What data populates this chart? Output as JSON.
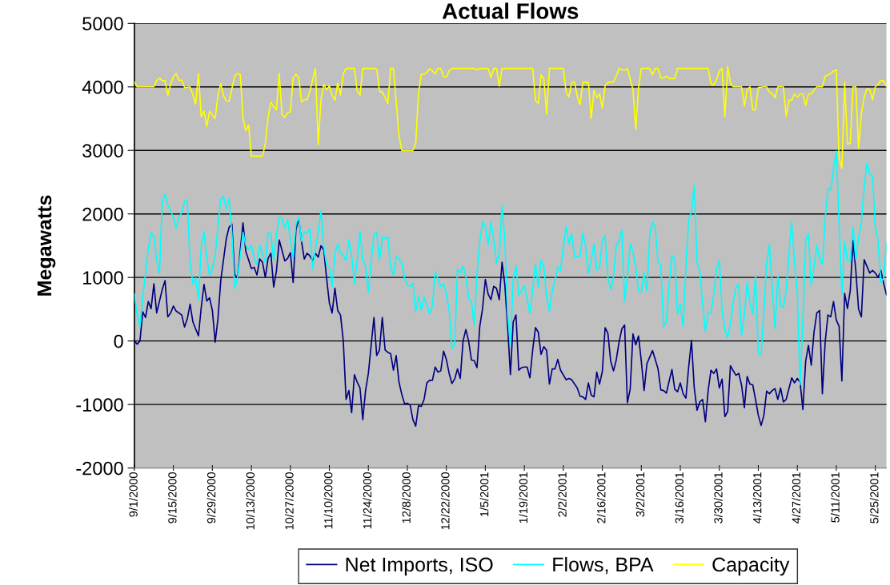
{
  "chart_data": {
    "type": "line",
    "title": "Actual Flows",
    "ylabel": "Megawatts",
    "xlim": [
      "2000-09-01",
      "2001-05-29"
    ],
    "ylim": [
      -2000,
      5000
    ],
    "yticks": [
      -2000,
      -1000,
      0,
      1000,
      2000,
      3000,
      4000,
      5000
    ],
    "xticks": [
      {
        "value": "2000-09-01",
        "label": "9/1/2000"
      },
      {
        "value": "2000-09-15",
        "label": "9/15/2000"
      },
      {
        "value": "2000-09-29",
        "label": "9/29/2000"
      },
      {
        "value": "2000-10-13",
        "label": "10/13/2000"
      },
      {
        "value": "2000-10-27",
        "label": "10/27/2000"
      },
      {
        "value": "2000-11-10",
        "label": "11/10/2000"
      },
      {
        "value": "2000-11-24",
        "label": "11/24/2000"
      },
      {
        "value": "2000-12-08",
        "label": "12/8/2000"
      },
      {
        "value": "2000-12-22",
        "label": "12/22/2000"
      },
      {
        "value": "2001-01-05",
        "label": "1/5/2001"
      },
      {
        "value": "2001-01-19",
        "label": "1/19/2001"
      },
      {
        "value": "2001-02-02",
        "label": "2/2/2001"
      },
      {
        "value": "2001-02-16",
        "label": "2/16/2001"
      },
      {
        "value": "2001-03-02",
        "label": "3/2/2001"
      },
      {
        "value": "2001-03-16",
        "label": "3/16/2001"
      },
      {
        "value": "2001-03-30",
        "label": "3/30/2001"
      },
      {
        "value": "2001-04-13",
        "label": "4/13/2001"
      },
      {
        "value": "2001-04-27",
        "label": "4/27/2001"
      },
      {
        "value": "2001-05-11",
        "label": "5/11/2001"
      },
      {
        "value": "2001-05-25",
        "label": "5/25/2001"
      }
    ],
    "grid": "y",
    "legend": "bottom",
    "marker": "none",
    "line_style": "solid",
    "series": [
      {
        "name": "Net Imports, ISO",
        "color": "#000080",
        "x": [
          "2000-09-01",
          "2000-09-02",
          "2000-09-03",
          "2000-09-04",
          "2000-09-05",
          "2000-09-06",
          "2000-09-07",
          "2000-09-08",
          "2000-09-09",
          "2000-09-11",
          "2000-09-12",
          "2000-09-13",
          "2000-09-14",
          "2000-09-15",
          "2000-09-16",
          "2000-09-18",
          "2000-09-19",
          "2000-09-20",
          "2000-09-21",
          "2000-09-22",
          "2000-09-24",
          "2000-09-25",
          "2000-09-26",
          "2000-09-27",
          "2000-09-28",
          "2000-09-29",
          "2000-09-30",
          "2000-10-01",
          "2000-10-02",
          "2000-10-04",
          "2000-10-05",
          "2000-10-06",
          "2000-10-07",
          "2000-10-08",
          "2000-10-10",
          "2000-10-11",
          "2000-10-13",
          "2000-10-14",
          "2000-10-15",
          "2000-10-16",
          "2000-10-17",
          "2000-10-18",
          "2000-10-19",
          "2000-10-20",
          "2000-10-21",
          "2000-10-22",
          "2000-10-23",
          "2000-10-25",
          "2000-10-26",
          "2000-10-27",
          "2000-10-28",
          "2000-10-29",
          "2000-10-30",
          "2000-10-31",
          "2000-11-01",
          "2000-11-02",
          "2000-11-03",
          "2000-11-04",
          "2000-11-05",
          "2000-11-06",
          "2000-11-07",
          "2000-11-08",
          "2000-11-09",
          "2000-11-10",
          "2000-11-11",
          "2000-11-12",
          "2000-11-13",
          "2000-11-14",
          "2000-11-15",
          "2000-11-16",
          "2000-11-17",
          "2000-11-18",
          "2000-11-19",
          "2000-11-20",
          "2000-11-21",
          "2000-11-22",
          "2000-11-23",
          "2000-11-24",
          "2000-11-26",
          "2000-11-27",
          "2000-11-28",
          "2000-11-29",
          "2000-11-30",
          "2000-12-01",
          "2000-12-02",
          "2000-12-03",
          "2000-12-04",
          "2000-12-05",
          "2000-12-06",
          "2000-12-07",
          "2000-12-08",
          "2000-12-09",
          "2000-12-10",
          "2000-12-11",
          "2000-12-12",
          "2000-12-13",
          "2000-12-14",
          "2000-12-15",
          "2000-12-16",
          "2000-12-17",
          "2000-12-18",
          "2000-12-19",
          "2000-12-20",
          "2000-12-21",
          "2000-12-22",
          "2000-12-23",
          "2000-12-24",
          "2000-12-25",
          "2000-12-26",
          "2000-12-27",
          "2000-12-28",
          "2000-12-29",
          "2000-12-30",
          "2000-12-31",
          "2001-01-01",
          "2001-01-02",
          "2001-01-03",
          "2001-01-04",
          "2001-01-05",
          "2001-01-06",
          "2001-01-07",
          "2001-01-08",
          "2001-01-09",
          "2001-01-10",
          "2001-01-11",
          "2001-01-12",
          "2001-01-13",
          "2001-01-14",
          "2001-01-15",
          "2001-01-16",
          "2001-01-17",
          "2001-01-18",
          "2001-01-19",
          "2001-01-20",
          "2001-01-21",
          "2001-01-22",
          "2001-01-23",
          "2001-01-24",
          "2001-01-25",
          "2001-01-26",
          "2001-01-27",
          "2001-01-28",
          "2001-01-29",
          "2001-01-30",
          "2001-01-31",
          "2001-02-01",
          "2001-02-03",
          "2001-02-04",
          "2001-02-05",
          "2001-02-07",
          "2001-02-08",
          "2001-02-09",
          "2001-02-10",
          "2001-02-11",
          "2001-02-12",
          "2001-02-13",
          "2001-02-14",
          "2001-02-15",
          "2001-02-16",
          "2001-02-17",
          "2001-02-18",
          "2001-02-19",
          "2001-02-20",
          "2001-02-21",
          "2001-02-22",
          "2001-02-23",
          "2001-02-24",
          "2001-02-25",
          "2001-02-26",
          "2001-02-27",
          "2001-02-28",
          "2001-03-01",
          "2001-03-02",
          "2001-03-03",
          "2001-03-04",
          "2001-03-06",
          "2001-03-07",
          "2001-03-08",
          "2001-03-09",
          "2001-03-10",
          "2001-03-11",
          "2001-03-12",
          "2001-03-13",
          "2001-03-14",
          "2001-03-15",
          "2001-03-16",
          "2001-03-17",
          "2001-03-18",
          "2001-03-19",
          "2001-03-20",
          "2001-03-21",
          "2001-03-22",
          "2001-03-23",
          "2001-03-24",
          "2001-03-25",
          "2001-03-26",
          "2001-03-27",
          "2001-03-28",
          "2001-03-29",
          "2001-03-30",
          "2001-03-31",
          "2001-04-01",
          "2001-04-02",
          "2001-04-03",
          "2001-04-04",
          "2001-04-05",
          "2001-04-06",
          "2001-04-07",
          "2001-04-08",
          "2001-04-09",
          "2001-04-10",
          "2001-04-11",
          "2001-04-12",
          "2001-04-13",
          "2001-04-14",
          "2001-04-15",
          "2001-04-16",
          "2001-04-17",
          "2001-04-18",
          "2001-04-19",
          "2001-04-20",
          "2001-04-21",
          "2001-04-22",
          "2001-04-23",
          "2001-04-24",
          "2001-04-25",
          "2001-04-26",
          "2001-04-27",
          "2001-04-28",
          "2001-04-29",
          "2001-04-30",
          "2001-05-01",
          "2001-05-02",
          "2001-05-03",
          "2001-05-04",
          "2001-05-05",
          "2001-05-06",
          "2001-05-07",
          "2001-05-08",
          "2001-05-09",
          "2001-05-10",
          "2001-05-11",
          "2001-05-12",
          "2001-05-13",
          "2001-05-14",
          "2001-05-15",
          "2001-05-16",
          "2001-05-17",
          "2001-05-18",
          "2001-05-19",
          "2001-05-20",
          "2001-05-21",
          "2001-05-23",
          "2001-05-24",
          "2001-05-25",
          "2001-05-26",
          "2001-05-27",
          "2001-05-28",
          "2001-05-29"
        ],
        "values": [
          0,
          -50,
          0,
          460,
          370,
          620,
          510,
          900,
          440,
          810,
          950,
          380,
          440,
          550,
          470,
          410,
          220,
          350,
          580,
          300,
          80,
          530,
          890,
          630,
          680,
          480,
          -20,
          350,
          950,
          1610,
          1790,
          1840,
          1050,
          990,
          1860,
          1410,
          1140,
          1160,
          1040,
          1290,
          1240,
          1000,
          1300,
          1380,
          850,
          1100,
          1590,
          1260,
          1300,
          1390,
          920,
          1750,
          1930,
          1570,
          1290,
          1380,
          1340,
          1260,
          1380,
          1320,
          1500,
          1430,
          990,
          600,
          440,
          830,
          480,
          410,
          0,
          -920,
          -780,
          -1130,
          -530,
          -650,
          -740,
          -1240,
          -780,
          -510,
          370,
          -230,
          -140,
          370,
          -140,
          -180,
          -200,
          -460,
          -230,
          -650,
          -840,
          -990,
          -980,
          -1010,
          -1240,
          -1340,
          -1020,
          -1030,
          -920,
          -660,
          -620,
          -620,
          -410,
          -490,
          -470,
          -160,
          -290,
          -510,
          -670,
          -600,
          -440,
          -590,
          0,
          180,
          0,
          -300,
          -310,
          -420,
          230,
          510,
          970,
          740,
          650,
          860,
          830,
          650,
          1240,
          880,
          230,
          -530,
          300,
          410,
          -460,
          -420,
          -410,
          -410,
          -580,
          -140,
          210,
          140,
          -210,
          -90,
          -150,
          -680,
          -440,
          -440,
          -290,
          -460,
          -610,
          -590,
          -610,
          -740,
          -870,
          -880,
          -920,
          -660,
          -850,
          -880,
          -490,
          -680,
          -480,
          210,
          120,
          -320,
          -470,
          -300,
          -20,
          190,
          250,
          -970,
          -760,
          110,
          -60,
          80,
          -320,
          -780,
          -360,
          -150,
          -290,
          -440,
          -770,
          -780,
          -820,
          -630,
          -450,
          -760,
          -800,
          -660,
          -830,
          -900,
          -410,
          10,
          -740,
          -1090,
          -960,
          -920,
          -1270,
          -780,
          -460,
          -510,
          -440,
          -740,
          -600,
          -1190,
          -1110,
          -390,
          -470,
          -540,
          -510,
          -700,
          -1050,
          -560,
          -680,
          -690,
          -920,
          -1170,
          -1330,
          -1170,
          -790,
          -830,
          -780,
          -750,
          -920,
          -740,
          -960,
          -920,
          -750,
          -580,
          -660,
          -590,
          -650,
          -1080,
          -320,
          -70,
          -380,
          140,
          440,
          480,
          -830,
          -20,
          410,
          380,
          620,
          330,
          230,
          -630,
          750,
          510,
          790,
          1580,
          1110,
          500,
          380,
          1280,
          1070,
          1110,
          1070,
          1000,
          1110,
          910,
          730
        ]
      },
      {
        "name": "Flows, BPA",
        "color": "#00ffff",
        "x": [
          "2000-09-01",
          "2000-09-02",
          "2000-09-03",
          "2000-09-04",
          "2000-09-05",
          "2000-09-06",
          "2000-09-07",
          "2000-09-08",
          "2000-09-09",
          "2000-09-10",
          "2000-09-11",
          "2000-09-12",
          "2000-09-13",
          "2000-09-14",
          "2000-09-15",
          "2000-09-16",
          "2000-09-17",
          "2000-09-18",
          "2000-09-19",
          "2000-09-20",
          "2000-09-21",
          "2000-09-22",
          "2000-09-23",
          "2000-09-24",
          "2000-09-25",
          "2000-09-26",
          "2000-09-27",
          "2000-09-28",
          "2000-09-29",
          "2000-09-30",
          "2000-10-01",
          "2000-10-02",
          "2000-10-03",
          "2000-10-04",
          "2000-10-05",
          "2000-10-06",
          "2000-10-07",
          "2000-10-08",
          "2000-10-09",
          "2000-10-10",
          "2000-10-11",
          "2000-10-12",
          "2000-10-13",
          "2000-10-14",
          "2000-10-15",
          "2000-10-16",
          "2000-10-17",
          "2000-10-18",
          "2000-10-19",
          "2000-10-20",
          "2000-10-21",
          "2000-10-22",
          "2000-10-23",
          "2000-10-24",
          "2000-10-25",
          "2000-10-26",
          "2000-10-27",
          "2000-10-28",
          "2000-10-29",
          "2000-10-30",
          "2000-10-31",
          "2000-11-01",
          "2000-11-02",
          "2000-11-03",
          "2000-11-04",
          "2000-11-05",
          "2000-11-06",
          "2000-11-07",
          "2000-11-08",
          "2000-11-09",
          "2000-11-10",
          "2000-11-11",
          "2000-11-12",
          "2000-11-13",
          "2000-11-14",
          "2000-11-15",
          "2000-11-16",
          "2000-11-17",
          "2000-11-18",
          "2000-11-19",
          "2000-11-20",
          "2000-11-21",
          "2000-11-22",
          "2000-11-23",
          "2000-11-24",
          "2000-11-25",
          "2000-11-26",
          "2000-11-27",
          "2000-11-28",
          "2000-11-29",
          "2000-11-30",
          "2000-12-01",
          "2000-12-02",
          "2000-12-03",
          "2000-12-04",
          "2000-12-05",
          "2000-12-06",
          "2000-12-07",
          "2000-12-08",
          "2000-12-09",
          "2000-12-10",
          "2000-12-11",
          "2000-12-12",
          "2000-12-13",
          "2000-12-14",
          "2000-12-15",
          "2000-12-16",
          "2000-12-17",
          "2000-12-18",
          "2000-12-19",
          "2000-12-20",
          "2000-12-21",
          "2000-12-22",
          "2000-12-23",
          "2000-12-24",
          "2000-12-25",
          "2000-12-26",
          "2000-12-27",
          "2000-12-28",
          "2000-12-29",
          "2000-12-30",
          "2000-12-31",
          "2001-01-01",
          "2001-01-02",
          "2001-01-03",
          "2001-01-04",
          "2001-01-05",
          "2001-01-06",
          "2001-01-07",
          "2001-01-08",
          "2001-01-09",
          "2001-01-10",
          "2001-01-11",
          "2001-01-12",
          "2001-01-13",
          "2001-01-14",
          "2001-01-15",
          "2001-01-16",
          "2001-01-17",
          "2001-01-18",
          "2001-01-19",
          "2001-01-20",
          "2001-01-21",
          "2001-01-22",
          "2001-01-23",
          "2001-01-24",
          "2001-01-25",
          "2001-01-26",
          "2001-01-27",
          "2001-01-28",
          "2001-01-29",
          "2001-01-30",
          "2001-01-31",
          "2001-02-01",
          "2001-02-02",
          "2001-02-03",
          "2001-02-04",
          "2001-02-05",
          "2001-02-06",
          "2001-02-08",
          "2001-02-09",
          "2001-02-10",
          "2001-02-11",
          "2001-02-12",
          "2001-02-13",
          "2001-02-14",
          "2001-02-15",
          "2001-02-16",
          "2001-02-17",
          "2001-02-18",
          "2001-02-19",
          "2001-02-20",
          "2001-02-21",
          "2001-02-22",
          "2001-02-23",
          "2001-02-24",
          "2001-02-25",
          "2001-02-26",
          "2001-02-27",
          "2001-02-28",
          "2001-03-01",
          "2001-03-02",
          "2001-03-03",
          "2001-03-04",
          "2001-03-05",
          "2001-03-06",
          "2001-03-07",
          "2001-03-08",
          "2001-03-09",
          "2001-03-10",
          "2001-03-11",
          "2001-03-12",
          "2001-03-13",
          "2001-03-14",
          "2001-03-15",
          "2001-03-16",
          "2001-03-17",
          "2001-03-18",
          "2001-03-19",
          "2001-03-20",
          "2001-03-21",
          "2001-03-22",
          "2001-03-23",
          "2001-03-24",
          "2001-03-25",
          "2001-03-26",
          "2001-03-27",
          "2001-03-28",
          "2001-03-29",
          "2001-03-30",
          "2001-03-31",
          "2001-04-01",
          "2001-04-02",
          "2001-04-03",
          "2001-04-04",
          "2001-04-05",
          "2001-04-06",
          "2001-04-07",
          "2001-04-08",
          "2001-04-09",
          "2001-04-10",
          "2001-04-11",
          "2001-04-12",
          "2001-04-13",
          "2001-04-14",
          "2001-04-15",
          "2001-04-16",
          "2001-04-17",
          "2001-04-18",
          "2001-04-19",
          "2001-04-20",
          "2001-04-21",
          "2001-04-22",
          "2001-04-23",
          "2001-04-24",
          "2001-04-25",
          "2001-04-26",
          "2001-04-27",
          "2001-04-28",
          "2001-04-29",
          "2001-04-30",
          "2001-05-01",
          "2001-05-02",
          "2001-05-03",
          "2001-05-04",
          "2001-05-05",
          "2001-05-06",
          "2001-05-07",
          "2001-05-08",
          "2001-05-09",
          "2001-05-10",
          "2001-05-11",
          "2001-05-12",
          "2001-05-13",
          "2001-05-14",
          "2001-05-15",
          "2001-05-16",
          "2001-05-17",
          "2001-05-18",
          "2001-05-19",
          "2001-05-20",
          "2001-05-21",
          "2001-05-22",
          "2001-05-23",
          "2001-05-24",
          "2001-05-25",
          "2001-05-26",
          "2001-05-27",
          "2001-05-28",
          "2001-05-29"
        ],
        "values": [
          740,
          410,
          230,
          690,
          1060,
          1450,
          1700,
          1650,
          1270,
          1060,
          2200,
          2310,
          2140,
          2050,
          1940,
          1780,
          1950,
          2020,
          2200,
          2210,
          1230,
          900,
          990,
          650,
          1490,
          1720,
          1310,
          1030,
          1150,
          1330,
          1800,
          2230,
          2280,
          2070,
          2240,
          1700,
          830,
          990,
          1330,
          1710,
          1510,
          1440,
          1510,
          1290,
          1210,
          1510,
          1360,
          1240,
          1700,
          1690,
          1270,
          1670,
          1950,
          1940,
          1780,
          1910,
          1600,
          1310,
          1840,
          1950,
          1570,
          1720,
          1690,
          1770,
          1130,
          1460,
          1720,
          2050,
          1480,
          1200,
          1160,
          860,
          1380,
          1520,
          1380,
          1340,
          1270,
          1590,
          1350,
          900,
          1270,
          1720,
          1270,
          1180,
          770,
          1240,
          1670,
          1710,
          1270,
          1630,
          1610,
          1640,
          1160,
          1040,
          1330,
          1290,
          1240,
          990,
          880,
          860,
          910,
          470,
          700,
          490,
          690,
          560,
          420,
          560,
          1080,
          980,
          860,
          900,
          740,
          490,
          -120,
          -50,
          1130,
          1070,
          1180,
          1010,
          670,
          620,
          250,
          1060,
          1560,
          1870,
          1800,
          1520,
          1870,
          1610,
          1220,
          1380,
          2130,
          1610,
          410,
          -50,
          980,
          1180,
          720,
          790,
          870,
          670,
          430,
          810,
          1220,
          860,
          1270,
          1170,
          690,
          470,
          790,
          950,
          1170,
          1110,
          1480,
          1800,
          1530,
          1690,
          1330,
          1330,
          1700,
          1480,
          1060,
          1270,
          1530,
          1120,
          1160,
          1590,
          1660,
          1000,
          810,
          1000,
          1520,
          1570,
          1750,
          620,
          1020,
          1530,
          1400,
          1160,
          790,
          770,
          1070,
          790,
          1650,
          1880,
          1780,
          1240,
          1200,
          220,
          310,
          900,
          1350,
          1290,
          430,
          580,
          230,
          1160,
          1920,
          2030,
          2450,
          1240,
          1100,
          600,
          150,
          440,
          440,
          730,
          1130,
          1270,
          480,
          170,
          50,
          280,
          620,
          850,
          880,
          80,
          410,
          920,
          600,
          430,
          1030,
          -190,
          -230,
          460,
          1240,
          1520,
          830,
          190,
          1020,
          560,
          530,
          790,
          1380,
          1880,
          1240,
          760,
          -690,
          320,
          1590,
          1680,
          880,
          1160,
          1510,
          1290,
          1210,
          1920,
          2390,
          2380,
          2710,
          2990,
          1880,
          740,
          1570,
          1260,
          1260,
          1800,
          1280,
          1630,
          1870,
          2420,
          2800,
          2620,
          2600,
          1800,
          1570,
          920,
          990,
          1540
        ]
      },
      {
        "name": "Capacity",
        "color": "#ffff00",
        "x": [
          "2000-09-01",
          "2000-09-02",
          "2000-09-08",
          "2000-09-09",
          "2000-09-10",
          "2000-09-11",
          "2000-09-12",
          "2000-09-13",
          "2000-09-14",
          "2000-09-15",
          "2000-09-16",
          "2000-09-17",
          "2000-09-18",
          "2000-09-19",
          "2000-09-21",
          "2000-09-22",
          "2000-09-23",
          "2000-09-24",
          "2000-09-25",
          "2000-09-26",
          "2000-09-27",
          "2000-09-28",
          "2000-09-30",
          "2000-10-01",
          "2000-10-02",
          "2000-10-03",
          "2000-10-04",
          "2000-10-05",
          "2000-10-07",
          "2000-10-08",
          "2000-10-09",
          "2000-10-10",
          "2000-10-11",
          "2000-10-12",
          "2000-10-13",
          "2000-10-17",
          "2000-10-18",
          "2000-10-19",
          "2000-10-20",
          "2000-10-21",
          "2000-10-22",
          "2000-10-23",
          "2000-10-24",
          "2000-10-25",
          "2000-10-26",
          "2000-10-27",
          "2000-10-28",
          "2000-10-29",
          "2000-10-30",
          "2000-10-31",
          "2000-11-01",
          "2000-11-02",
          "2000-11-03",
          "2000-11-05",
          "2000-11-06",
          "2000-11-07",
          "2000-11-08",
          "2000-11-09",
          "2000-11-10",
          "2000-11-11",
          "2000-11-12",
          "2000-11-13",
          "2000-11-14",
          "2000-11-15",
          "2000-11-16",
          "2000-11-19",
          "2000-11-20",
          "2000-11-21",
          "2000-11-22",
          "2000-11-26",
          "2000-11-27",
          "2000-11-28",
          "2000-11-29",
          "2000-12-01",
          "2000-12-02",
          "2000-12-03",
          "2000-12-05",
          "2000-12-06",
          "2000-12-10",
          "2000-12-11",
          "2000-12-12",
          "2000-12-13",
          "2000-12-14",
          "2000-12-15",
          "2000-12-16",
          "2000-12-18",
          "2000-12-19",
          "2000-12-20",
          "2000-12-21",
          "2000-12-22",
          "2000-12-23",
          "2000-12-24",
          "2001-01-01",
          "2001-01-02",
          "2001-01-03",
          "2001-01-06",
          "2001-01-07",
          "2001-01-08",
          "2001-01-09",
          "2001-01-10",
          "2001-01-11",
          "2001-01-22",
          "2001-01-23",
          "2001-01-24",
          "2001-01-25",
          "2001-01-26",
          "2001-01-27",
          "2001-01-28",
          "2001-02-02",
          "2001-02-03",
          "2001-02-04",
          "2001-02-05",
          "2001-02-06",
          "2001-02-07",
          "2001-02-08",
          "2001-02-09",
          "2001-02-11",
          "2001-02-12",
          "2001-02-13",
          "2001-02-14",
          "2001-02-15",
          "2001-02-16",
          "2001-02-17",
          "2001-02-18",
          "2001-02-20",
          "2001-02-21",
          "2001-02-22",
          "2001-02-24",
          "2001-02-25",
          "2001-02-27",
          "2001-02-28",
          "2001-03-01",
          "2001-03-02",
          "2001-03-05",
          "2001-03-06",
          "2001-03-07",
          "2001-03-08",
          "2001-03-09",
          "2001-03-10",
          "2001-03-11",
          "2001-03-12",
          "2001-03-14",
          "2001-03-15",
          "2001-03-26",
          "2001-03-27",
          "2001-03-28",
          "2001-03-29",
          "2001-03-30",
          "2001-03-31",
          "2001-04-01",
          "2001-04-02",
          "2001-04-03",
          "2001-04-04",
          "2001-04-07",
          "2001-04-08",
          "2001-04-09",
          "2001-04-10",
          "2001-04-11",
          "2001-04-12",
          "2001-04-13",
          "2001-04-15",
          "2001-04-16",
          "2001-04-17",
          "2001-04-18",
          "2001-04-19",
          "2001-04-20",
          "2001-04-22",
          "2001-04-23",
          "2001-04-24",
          "2001-04-25",
          "2001-04-26",
          "2001-04-27",
          "2001-04-28",
          "2001-04-29",
          "2001-04-30",
          "2001-05-01",
          "2001-05-02",
          "2001-05-03",
          "2001-05-04",
          "2001-05-06",
          "2001-05-07",
          "2001-05-08",
          "2001-05-09",
          "2001-05-10",
          "2001-05-11",
          "2001-05-12",
          "2001-05-13",
          "2001-05-14",
          "2001-05-15",
          "2001-05-16",
          "2001-05-17",
          "2001-05-18",
          "2001-05-19",
          "2001-05-20",
          "2001-05-21",
          "2001-05-22",
          "2001-05-23",
          "2001-05-24",
          "2001-05-25",
          "2001-05-26",
          "2001-05-27",
          "2001-05-28",
          "2001-05-29"
        ],
        "values": [
          4080,
          4000,
          4000,
          4100,
          4140,
          4100,
          4100,
          3870,
          4040,
          4160,
          4210,
          4100,
          4110,
          3990,
          4000,
          3870,
          3730,
          4210,
          3530,
          3620,
          3380,
          3620,
          3500,
          3870,
          4050,
          3860,
          3780,
          3770,
          4170,
          4210,
          4200,
          3500,
          3310,
          3400,
          2910,
          2910,
          3100,
          3530,
          3760,
          3690,
          3640,
          4210,
          3560,
          3520,
          3590,
          3610,
          4140,
          4200,
          4150,
          3760,
          3800,
          3800,
          3930,
          4290,
          3090,
          3800,
          4040,
          3950,
          4020,
          3870,
          3790,
          4060,
          3870,
          4210,
          4290,
          4290,
          3930,
          3870,
          4290,
          4290,
          4280,
          3930,
          3920,
          3740,
          4290,
          4290,
          3230,
          3000,
          3000,
          3110,
          3900,
          4200,
          4200,
          4230,
          4290,
          4210,
          4290,
          4290,
          4160,
          4160,
          4250,
          4290,
          4290,
          4270,
          4290,
          4290,
          4150,
          4290,
          4290,
          4010,
          4290,
          4290,
          3790,
          3740,
          4190,
          4130,
          3570,
          4290,
          4290,
          3920,
          3840,
          4070,
          4080,
          3850,
          3720,
          4070,
          4070,
          3500,
          3950,
          3830,
          3890,
          3670,
          4020,
          4070,
          4080,
          4170,
          4290,
          4260,
          4290,
          3960,
          3330,
          3990,
          4290,
          4290,
          4190,
          4290,
          4290,
          4140,
          4140,
          4170,
          4130,
          4130,
          4290,
          4290,
          4050,
          4030,
          4110,
          4250,
          4290,
          3530,
          4320,
          4060,
          4000,
          4000,
          3700,
          3960,
          4000,
          3640,
          3640,
          3990,
          4000,
          4000,
          3920,
          3890,
          3830,
          4000,
          4000,
          3540,
          3790,
          3790,
          3890,
          3840,
          3890,
          3890,
          3710,
          3890,
          3890,
          3950,
          4000,
          4000,
          4170,
          4190,
          4210,
          4250,
          4270,
          2880,
          2720,
          4070,
          3100,
          3110,
          4000,
          4000,
          3030,
          3580,
          3840,
          3970,
          3960,
          3800,
          4000,
          4040,
          4100,
          4100,
          4000
        ]
      }
    ]
  }
}
